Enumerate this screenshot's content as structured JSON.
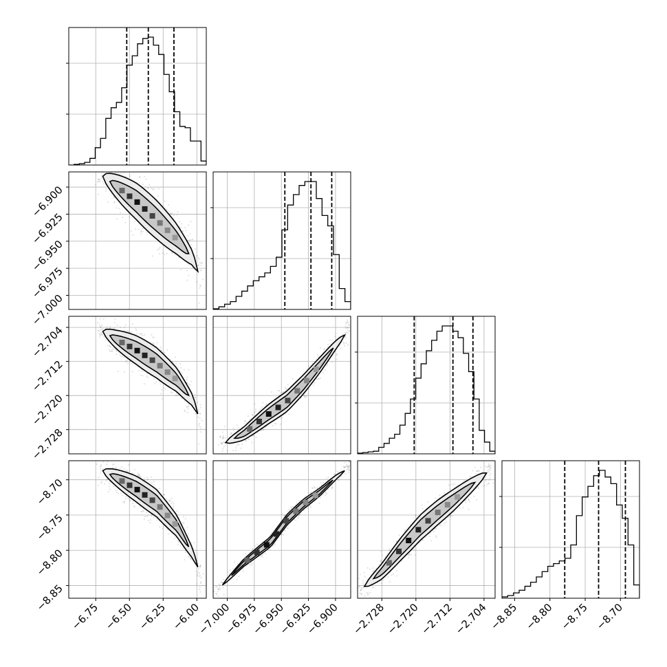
{
  "figure": {
    "background": "#ffffff",
    "grid": true,
    "grid_color": "#b0b0b0",
    "line_color": "#000000",
    "scatter_color": "#808080"
  },
  "chart_data": {
    "type": "corner",
    "n_params": 4,
    "params": [
      {
        "range": [
          -6.95,
          -5.93
        ],
        "ticks": [
          -6.75,
          -6.5,
          -6.25,
          -6.0
        ],
        "tick_labels": [
          "−6.75",
          "−6.50",
          "−6.25",
          "−6.00"
        ],
        "quantiles": [
          -6.52,
          -6.36,
          -6.17
        ],
        "median": -6.36,
        "hist": [
          0.0,
          0.005,
          0.01,
          0.02,
          0.05,
          0.13,
          0.2,
          0.35,
          0.43,
          0.47,
          0.58,
          0.75,
          0.82,
          0.91,
          0.95,
          0.96,
          0.9,
          0.83,
          0.68,
          0.55,
          0.4,
          0.29,
          0.28,
          0.18,
          0.18,
          0.03
        ]
      },
      {
        "range": [
          -7.013,
          -6.886
        ],
        "ticks": [
          -7.0,
          -6.975,
          -6.95,
          -6.925,
          -6.9
        ],
        "tick_labels": [
          "−7.000",
          "−6.975",
          "−6.950",
          "−6.925",
          "−6.900"
        ],
        "quantiles": [
          -6.9468,
          -6.9227,
          -6.9035
        ],
        "median": -6.9227,
        "hist": [
          0.005,
          0.02,
          0.04,
          0.06,
          0.1,
          0.14,
          0.18,
          0.22,
          0.25,
          0.28,
          0.33,
          0.4,
          0.61,
          0.8,
          0.88,
          0.95,
          0.98,
          0.98,
          0.85,
          0.72,
          0.64,
          0.42,
          0.16,
          0.06
        ]
      },
      {
        "range": [
          -2.7337,
          -2.7014
        ],
        "ticks": [
          -2.728,
          -2.72,
          -2.712,
          -2.704
        ],
        "tick_labels": [
          "−2.728",
          "−2.720",
          "−2.712",
          "−2.704"
        ],
        "quantiles": [
          -2.7204,
          -2.7113,
          -2.7066
        ],
        "median": -2.7113,
        "hist": [
          0.005,
          0.01,
          0.015,
          0.02,
          0.05,
          0.08,
          0.12,
          0.15,
          0.22,
          0.31,
          0.42,
          0.58,
          0.69,
          0.79,
          0.87,
          0.94,
          0.98,
          0.98,
          0.94,
          0.89,
          0.77,
          0.63,
          0.42,
          0.18,
          0.09,
          0.02
        ]
      },
      {
        "range": [
          -8.868,
          -8.673
        ],
        "ticks": [
          -8.85,
          -8.8,
          -8.75,
          -8.7
        ],
        "tick_labels": [
          "−8.85",
          "−8.80",
          "−8.75",
          "−8.70"
        ],
        "quantiles": [
          -8.779,
          -8.731,
          -8.693
        ],
        "median": -8.731,
        "hist": [
          0.01,
          0.02,
          0.04,
          0.06,
          0.09,
          0.12,
          0.16,
          0.2,
          0.24,
          0.26,
          0.28,
          0.3,
          0.4,
          0.62,
          0.76,
          0.84,
          0.92,
          0.96,
          0.91,
          0.86,
          0.7,
          0.6,
          0.4,
          0.1
        ]
      }
    ],
    "pairs": [
      {
        "i": 1,
        "j": 0,
        "ridge": [
          [
            -6.72,
            -6.888
          ],
          [
            -6.6,
            -6.899
          ],
          [
            -6.45,
            -6.913
          ],
          [
            -6.3,
            -6.93
          ],
          [
            -6.15,
            -6.948
          ],
          [
            -6.03,
            -6.966
          ],
          [
            -5.97,
            -6.985
          ]
        ],
        "width": 0.012,
        "slope": "neg"
      },
      {
        "i": 2,
        "j": 0,
        "ridge": [
          [
            -6.72,
            -2.7045
          ],
          [
            -6.6,
            -2.7068
          ],
          [
            -6.45,
            -2.7093
          ],
          [
            -6.3,
            -2.7123
          ],
          [
            -6.15,
            -2.7163
          ],
          [
            -6.03,
            -2.7212
          ],
          [
            -5.97,
            -2.7262
          ]
        ],
        "width": 0.0024,
        "slope": "neg"
      },
      {
        "i": 3,
        "j": 0,
        "ridge": [
          [
            -6.72,
            -8.685
          ],
          [
            -6.6,
            -8.697
          ],
          [
            -6.45,
            -8.713
          ],
          [
            -6.3,
            -8.733
          ],
          [
            -6.15,
            -8.765
          ],
          [
            -6.03,
            -8.805
          ],
          [
            -5.97,
            -8.835
          ]
        ],
        "width": 0.013,
        "slope": "neg"
      },
      {
        "i": 2,
        "j": 1,
        "ridge": [
          [
            -7.005,
            -2.7315
          ],
          [
            -6.985,
            -2.729
          ],
          [
            -6.962,
            -2.7244
          ],
          [
            -6.945,
            -2.7214
          ],
          [
            -6.93,
            -2.7175
          ],
          [
            -6.915,
            -2.713
          ],
          [
            -6.9,
            -2.7082
          ],
          [
            -6.888,
            -2.7048
          ]
        ],
        "width": 0.0016,
        "slope": "pos"
      },
      {
        "i": 3,
        "j": 1,
        "ridge": [
          [
            -7.008,
            -8.855
          ],
          [
            -6.985,
            -8.818
          ],
          [
            -6.96,
            -8.788
          ],
          [
            -6.945,
            -8.757
          ],
          [
            -6.93,
            -8.735
          ],
          [
            -6.915,
            -8.718
          ],
          [
            -6.9,
            -8.697
          ],
          [
            -6.888,
            -8.683
          ]
        ],
        "width": 0.005,
        "slope": "pos"
      },
      {
        "i": 3,
        "j": 2,
        "ridge": [
          [
            -2.733,
            -8.856
          ],
          [
            -2.728,
            -8.83
          ],
          [
            -2.7235,
            -8.798
          ],
          [
            -2.719,
            -8.768
          ],
          [
            -2.715,
            -8.747
          ],
          [
            -2.711,
            -8.728
          ],
          [
            -2.707,
            -8.708
          ],
          [
            -2.7025,
            -8.686
          ]
        ],
        "width": 0.012,
        "slope": "pos"
      }
    ]
  }
}
